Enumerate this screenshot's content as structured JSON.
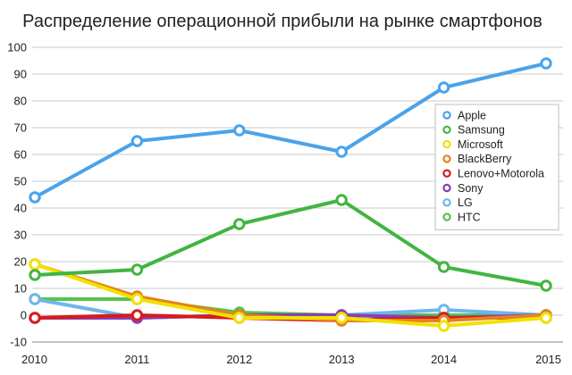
{
  "chart_data": {
    "type": "line",
    "title": "Распределение операционной прибыли на рынке смартфонов",
    "xlabel": "",
    "ylabel": "",
    "x": [
      "2010",
      "2011",
      "2012",
      "2013",
      "2014",
      "2015"
    ],
    "ylim": [
      -10,
      100
    ],
    "yticks": [
      -10,
      0,
      10,
      20,
      30,
      40,
      50,
      60,
      70,
      80,
      90,
      100
    ],
    "grid": true,
    "legend_position": "right",
    "series": [
      {
        "name": "Apple",
        "color": "#4aa3ea",
        "values": [
          44,
          65,
          69,
          61,
          85,
          94
        ]
      },
      {
        "name": "Samsung",
        "color": "#41b541",
        "values": [
          15,
          17,
          34,
          43,
          18,
          11
        ]
      },
      {
        "name": "Microsoft",
        "color": "#f2e100",
        "values": [
          19,
          6,
          -1,
          -1,
          -4,
          -1
        ]
      },
      {
        "name": "BlackBerry",
        "color": "#e5821e",
        "values": [
          19,
          7,
          0,
          -2,
          -2,
          0
        ]
      },
      {
        "name": "Lenovo+Motorola",
        "color": "#d81b1b",
        "values": [
          -1,
          0,
          -1,
          -2,
          -1,
          -1
        ]
      },
      {
        "name": "Sony",
        "color": "#8a3fb3",
        "values": [
          -1,
          -1,
          0,
          0,
          -1,
          0
        ]
      },
      {
        "name": "LG",
        "color": "#6fb6ea",
        "values": [
          6,
          -1,
          0,
          0,
          2,
          0
        ]
      },
      {
        "name": "HTC",
        "color": "#58c24e",
        "values": [
          6,
          6,
          1,
          0,
          0,
          0
        ]
      }
    ]
  }
}
